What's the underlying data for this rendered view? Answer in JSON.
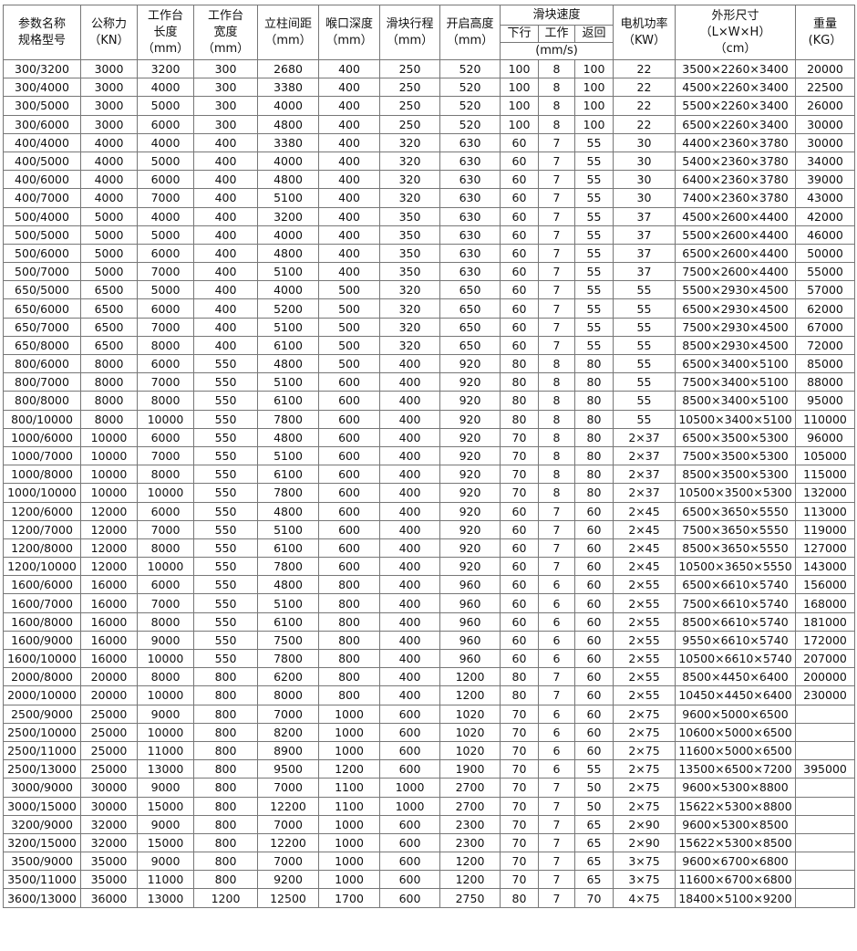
{
  "header": {
    "model": [
      "参数名称",
      "规格型号"
    ],
    "force": [
      "公称力",
      "（KN）"
    ],
    "table_length": [
      "工作台",
      "长度",
      "（mm）"
    ],
    "table_width": [
      "工作台",
      "宽度",
      "（mm）"
    ],
    "column_distance": [
      "立柱间距",
      "（mm）"
    ],
    "throat_depth": [
      "喉口深度",
      "（mm）"
    ],
    "stroke": [
      "滑块行程",
      "（mm）"
    ],
    "open_height": [
      "开启高度",
      "（mm）"
    ],
    "slide_speed": "滑块速度",
    "speed_down": "下行",
    "speed_work": "工作",
    "speed_return": "返回",
    "speed_unit": "(mm/s)",
    "motor_power": [
      "电机功率",
      "（KW）"
    ],
    "dimensions": [
      "外形尺寸",
      "（L×W×H）",
      "（cm）"
    ],
    "weight": [
      "重量",
      "(KG）"
    ]
  },
  "rows": [
    [
      "300/3200",
      "3000",
      "3200",
      "300",
      "2680",
      "400",
      "250",
      "520",
      "100",
      "8",
      "100",
      "22",
      "3500×2260×3400",
      "20000"
    ],
    [
      "300/4000",
      "3000",
      "4000",
      "300",
      "3380",
      "400",
      "250",
      "520",
      "100",
      "8",
      "100",
      "22",
      "4500×2260×3400",
      "22500"
    ],
    [
      "300/5000",
      "3000",
      "5000",
      "300",
      "4000",
      "400",
      "250",
      "520",
      "100",
      "8",
      "100",
      "22",
      "5500×2260×3400",
      "26000"
    ],
    [
      "300/6000",
      "3000",
      "6000",
      "300",
      "4800",
      "400",
      "250",
      "520",
      "100",
      "8",
      "100",
      "22",
      "6500×2260×3400",
      "30000"
    ],
    [
      "400/4000",
      "4000",
      "4000",
      "400",
      "3380",
      "400",
      "320",
      "630",
      "60",
      "7",
      "55",
      "30",
      "4400×2360×3780",
      "30000"
    ],
    [
      "400/5000",
      "4000",
      "5000",
      "400",
      "4000",
      "400",
      "320",
      "630",
      "60",
      "7",
      "55",
      "30",
      "5400×2360×3780",
      "34000"
    ],
    [
      "400/6000",
      "4000",
      "6000",
      "400",
      "4800",
      "400",
      "320",
      "630",
      "60",
      "7",
      "55",
      "30",
      "6400×2360×3780",
      "39000"
    ],
    [
      "400/7000",
      "4000",
      "7000",
      "400",
      "5100",
      "400",
      "320",
      "630",
      "60",
      "7",
      "55",
      "30",
      "7400×2360×3780",
      "43000"
    ],
    [
      "500/4000",
      "5000",
      "4000",
      "400",
      "3200",
      "400",
      "350",
      "630",
      "60",
      "7",
      "55",
      "37",
      "4500×2600×4400",
      "42000"
    ],
    [
      "500/5000",
      "5000",
      "5000",
      "400",
      "4000",
      "400",
      "350",
      "630",
      "60",
      "7",
      "55",
      "37",
      "5500×2600×4400",
      "46000"
    ],
    [
      "500/6000",
      "5000",
      "6000",
      "400",
      "4800",
      "400",
      "350",
      "630",
      "60",
      "7",
      "55",
      "37",
      "6500×2600×4400",
      "50000"
    ],
    [
      "500/7000",
      "5000",
      "7000",
      "400",
      "5100",
      "400",
      "350",
      "630",
      "60",
      "7",
      "55",
      "37",
      "7500×2600×4400",
      "55000"
    ],
    [
      "650/5000",
      "6500",
      "5000",
      "400",
      "4000",
      "500",
      "320",
      "650",
      "60",
      "7",
      "55",
      "55",
      "5500×2930×4500",
      "57000"
    ],
    [
      "650/6000",
      "6500",
      "6000",
      "400",
      "5200",
      "500",
      "320",
      "650",
      "60",
      "7",
      "55",
      "55",
      "6500×2930×4500",
      "62000"
    ],
    [
      "650/7000",
      "6500",
      "7000",
      "400",
      "5100",
      "500",
      "320",
      "650",
      "60",
      "7",
      "55",
      "55",
      "7500×2930×4500",
      "67000"
    ],
    [
      "650/8000",
      "6500",
      "8000",
      "400",
      "6100",
      "500",
      "320",
      "650",
      "60",
      "7",
      "55",
      "55",
      "8500×2930×4500",
      "72000"
    ],
    [
      "800/6000",
      "8000",
      "6000",
      "550",
      "4800",
      "500",
      "400",
      "920",
      "80",
      "8",
      "80",
      "55",
      "6500×3400×5100",
      "85000"
    ],
    [
      "800/7000",
      "8000",
      "7000",
      "550",
      "5100",
      "600",
      "400",
      "920",
      "80",
      "8",
      "80",
      "55",
      "7500×3400×5100",
      "88000"
    ],
    [
      "800/8000",
      "8000",
      "8000",
      "550",
      "6100",
      "600",
      "400",
      "920",
      "80",
      "8",
      "80",
      "55",
      "8500×3400×5100",
      "95000"
    ],
    [
      "800/10000",
      "8000",
      "10000",
      "550",
      "7800",
      "600",
      "400",
      "920",
      "80",
      "8",
      "80",
      "55",
      "10500×3400×5100",
      "110000"
    ],
    [
      "1000/6000",
      "10000",
      "6000",
      "550",
      "4800",
      "600",
      "400",
      "920",
      "70",
      "8",
      "80",
      "2×37",
      "6500×3500×5300",
      "96000"
    ],
    [
      "1000/7000",
      "10000",
      "7000",
      "550",
      "5100",
      "600",
      "400",
      "920",
      "70",
      "8",
      "80",
      "2×37",
      "7500×3500×5300",
      "105000"
    ],
    [
      "1000/8000",
      "10000",
      "8000",
      "550",
      "6100",
      "600",
      "400",
      "920",
      "70",
      "8",
      "80",
      "2×37",
      "8500×3500×5300",
      "115000"
    ],
    [
      "1000/10000",
      "10000",
      "10000",
      "550",
      "7800",
      "600",
      "400",
      "920",
      "70",
      "8",
      "80",
      "2×37",
      "10500×3500×5300",
      "132000"
    ],
    [
      "1200/6000",
      "12000",
      "6000",
      "550",
      "4800",
      "600",
      "400",
      "920",
      "60",
      "7",
      "60",
      "2×45",
      "6500×3650×5550",
      "113000"
    ],
    [
      "1200/7000",
      "12000",
      "7000",
      "550",
      "5100",
      "600",
      "400",
      "920",
      "60",
      "7",
      "60",
      "2×45",
      "7500×3650×5550",
      "119000"
    ],
    [
      "1200/8000",
      "12000",
      "8000",
      "550",
      "6100",
      "600",
      "400",
      "920",
      "60",
      "7",
      "60",
      "2×45",
      "8500×3650×5550",
      "127000"
    ],
    [
      "1200/10000",
      "12000",
      "10000",
      "550",
      "7800",
      "600",
      "400",
      "920",
      "60",
      "7",
      "60",
      "2×45",
      "10500×3650×5550",
      "143000"
    ],
    [
      "1600/6000",
      "16000",
      "6000",
      "550",
      "4800",
      "800",
      "400",
      "960",
      "60",
      "6",
      "60",
      "2×55",
      "6500×6610×5740",
      "156000"
    ],
    [
      "1600/7000",
      "16000",
      "7000",
      "550",
      "5100",
      "800",
      "400",
      "960",
      "60",
      "6",
      "60",
      "2×55",
      "7500×6610×5740",
      "168000"
    ],
    [
      "1600/8000",
      "16000",
      "8000",
      "550",
      "6100",
      "800",
      "400",
      "960",
      "60",
      "6",
      "60",
      "2×55",
      "8500×6610×5740",
      "181000"
    ],
    [
      "1600/9000",
      "16000",
      "9000",
      "550",
      "7500",
      "800",
      "400",
      "960",
      "60",
      "6",
      "60",
      "2×55",
      "9550×6610×5740",
      "172000"
    ],
    [
      "1600/10000",
      "16000",
      "10000",
      "550",
      "7800",
      "800",
      "400",
      "960",
      "60",
      "6",
      "60",
      "2×55",
      "10500×6610×5740",
      "207000"
    ],
    [
      "2000/8000",
      "20000",
      "8000",
      "800",
      "6200",
      "800",
      "400",
      "1200",
      "80",
      "7",
      "60",
      "2×55",
      "8500×4450×6400",
      "200000"
    ],
    [
      "2000/10000",
      "20000",
      "10000",
      "800",
      "8000",
      "800",
      "400",
      "1200",
      "80",
      "7",
      "60",
      "2×55",
      "10450×4450×6400",
      "230000"
    ],
    [
      "2500/9000",
      "25000",
      "9000",
      "800",
      "7000",
      "1000",
      "600",
      "1020",
      "70",
      "6",
      "60",
      "2×75",
      "9600×5000×6500",
      ""
    ],
    [
      "2500/10000",
      "25000",
      "10000",
      "800",
      "8200",
      "1000",
      "600",
      "1020",
      "70",
      "6",
      "60",
      "2×75",
      "10600×5000×6500",
      ""
    ],
    [
      "2500/11000",
      "25000",
      "11000",
      "800",
      "8900",
      "1000",
      "600",
      "1020",
      "70",
      "6",
      "60",
      "2×75",
      "11600×5000×6500",
      ""
    ],
    [
      "2500/13000",
      "25000",
      "13000",
      "800",
      "9500",
      "1200",
      "600",
      "1900",
      "70",
      "6",
      "55",
      "2×75",
      "13500×6500×7200",
      "395000"
    ],
    [
      "3000/9000",
      "30000",
      "9000",
      "800",
      "7000",
      "1100",
      "1000",
      "2700",
      "70",
      "7",
      "50",
      "2×75",
      "9600×5300×8800",
      ""
    ],
    [
      "3000/15000",
      "30000",
      "15000",
      "800",
      "12200",
      "1100",
      "1000",
      "2700",
      "70",
      "7",
      "50",
      "2×75",
      "15622×5300×8800",
      ""
    ],
    [
      "3200/9000",
      "32000",
      "9000",
      "800",
      "7000",
      "1000",
      "600",
      "2300",
      "70",
      "7",
      "65",
      "2×90",
      "9600×5300×8500",
      ""
    ],
    [
      "3200/15000",
      "32000",
      "15000",
      "800",
      "12200",
      "1000",
      "600",
      "2300",
      "70",
      "7",
      "65",
      "2×90",
      "15622×5300×8500",
      ""
    ],
    [
      "3500/9000",
      "35000",
      "9000",
      "800",
      "7000",
      "1000",
      "600",
      "1200",
      "70",
      "7",
      "65",
      "3×75",
      "9600×6700×6800",
      ""
    ],
    [
      "3500/11000",
      "35000",
      "11000",
      "800",
      "9200",
      "1000",
      "600",
      "1200",
      "70",
      "7",
      "65",
      "3×75",
      "11600×6700×6800",
      ""
    ],
    [
      "3600/13000",
      "36000",
      "13000",
      "1200",
      "12500",
      "1700",
      "600",
      "2750",
      "80",
      "7",
      "70",
      "4×75",
      "18400×5100×9200",
      ""
    ]
  ]
}
